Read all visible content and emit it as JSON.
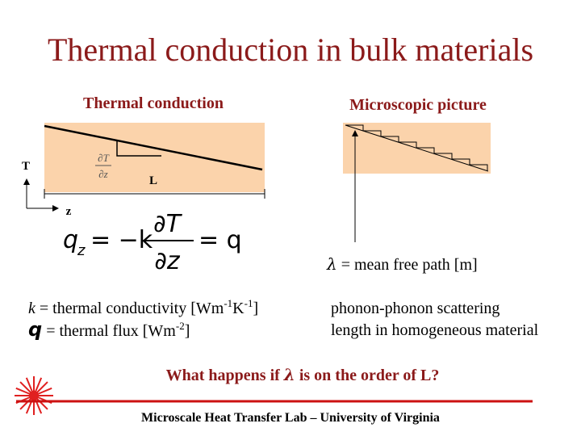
{
  "title": "Thermal conduction in bulk materials",
  "left_panel": {
    "heading": "Thermal conduction",
    "temperature_label": "T",
    "length_label": "L",
    "position_label": "z",
    "gradient": {
      "numerator": "∂T",
      "denominator": "∂z"
    },
    "equation": {
      "flux": "q",
      "subscript": "z",
      "middle": "= −k",
      "numerator": "∂T",
      "denominator": "∂z",
      "result": "= q"
    }
  },
  "right_panel": {
    "heading": "Microscopic picture",
    "lambda": {
      "symbol": "λ",
      "text": " = mean free path [m]"
    }
  },
  "definitions": {
    "k": {
      "symbol": "k",
      "text": " = thermal conductivity [Wm",
      "exp1": "-1",
      "unit2": "K",
      "exp2": "-1",
      "close": "]"
    },
    "q": {
      "symbol": "q",
      "text": " = thermal flux [Wm",
      "exp": "-2",
      "close": "]"
    }
  },
  "phonon_note": [
    "phonon-phonon scattering",
    "length in homogeneous material"
  ],
  "question": {
    "before": "What happens if ",
    "symbol": "λ",
    "after": " is on the order of L?"
  },
  "footer": "Microscale Heat Transfer Lab – University of Virginia"
}
